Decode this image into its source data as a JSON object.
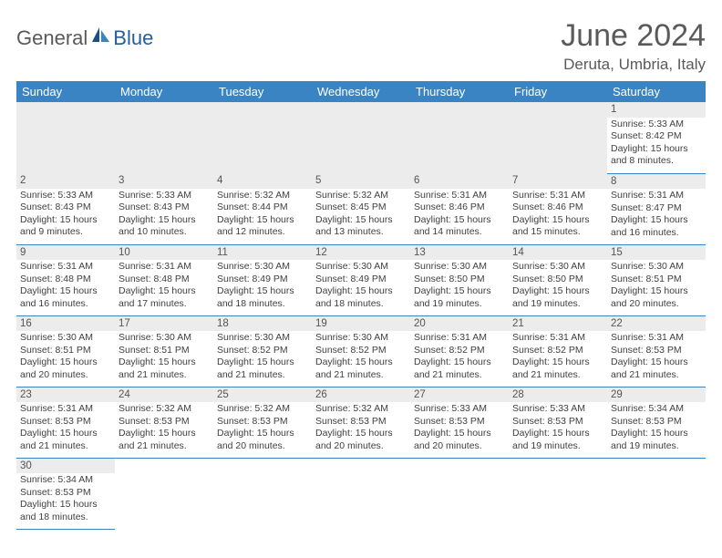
{
  "brand": {
    "part1": "General",
    "part2": "Blue"
  },
  "title": "June 2024",
  "location": "Deruta, Umbria, Italy",
  "colors": {
    "header_bg": "#3b84c4",
    "header_text": "#ffffff",
    "daynum_bg": "#ececec",
    "row_border": "#3b84c4",
    "title_color": "#5a5a5a",
    "brand_blue": "#235f9c"
  },
  "type": "table",
  "columns": [
    "Sunday",
    "Monday",
    "Tuesday",
    "Wednesday",
    "Thursday",
    "Friday",
    "Saturday"
  ],
  "weeks": [
    [
      null,
      null,
      null,
      null,
      null,
      null,
      {
        "n": "1",
        "sr": "5:33 AM",
        "ss": "8:42 PM",
        "dl": "15 hours and 8 minutes."
      }
    ],
    [
      {
        "n": "2",
        "sr": "5:33 AM",
        "ss": "8:43 PM",
        "dl": "15 hours and 9 minutes."
      },
      {
        "n": "3",
        "sr": "5:33 AM",
        "ss": "8:43 PM",
        "dl": "15 hours and 10 minutes."
      },
      {
        "n": "4",
        "sr": "5:32 AM",
        "ss": "8:44 PM",
        "dl": "15 hours and 12 minutes."
      },
      {
        "n": "5",
        "sr": "5:32 AM",
        "ss": "8:45 PM",
        "dl": "15 hours and 13 minutes."
      },
      {
        "n": "6",
        "sr": "5:31 AM",
        "ss": "8:46 PM",
        "dl": "15 hours and 14 minutes."
      },
      {
        "n": "7",
        "sr": "5:31 AM",
        "ss": "8:46 PM",
        "dl": "15 hours and 15 minutes."
      },
      {
        "n": "8",
        "sr": "5:31 AM",
        "ss": "8:47 PM",
        "dl": "15 hours and 16 minutes."
      }
    ],
    [
      {
        "n": "9",
        "sr": "5:31 AM",
        "ss": "8:48 PM",
        "dl": "15 hours and 16 minutes."
      },
      {
        "n": "10",
        "sr": "5:31 AM",
        "ss": "8:48 PM",
        "dl": "15 hours and 17 minutes."
      },
      {
        "n": "11",
        "sr": "5:30 AM",
        "ss": "8:49 PM",
        "dl": "15 hours and 18 minutes."
      },
      {
        "n": "12",
        "sr": "5:30 AM",
        "ss": "8:49 PM",
        "dl": "15 hours and 18 minutes."
      },
      {
        "n": "13",
        "sr": "5:30 AM",
        "ss": "8:50 PM",
        "dl": "15 hours and 19 minutes."
      },
      {
        "n": "14",
        "sr": "5:30 AM",
        "ss": "8:50 PM",
        "dl": "15 hours and 19 minutes."
      },
      {
        "n": "15",
        "sr": "5:30 AM",
        "ss": "8:51 PM",
        "dl": "15 hours and 20 minutes."
      }
    ],
    [
      {
        "n": "16",
        "sr": "5:30 AM",
        "ss": "8:51 PM",
        "dl": "15 hours and 20 minutes."
      },
      {
        "n": "17",
        "sr": "5:30 AM",
        "ss": "8:51 PM",
        "dl": "15 hours and 21 minutes."
      },
      {
        "n": "18",
        "sr": "5:30 AM",
        "ss": "8:52 PM",
        "dl": "15 hours and 21 minutes."
      },
      {
        "n": "19",
        "sr": "5:30 AM",
        "ss": "8:52 PM",
        "dl": "15 hours and 21 minutes."
      },
      {
        "n": "20",
        "sr": "5:31 AM",
        "ss": "8:52 PM",
        "dl": "15 hours and 21 minutes."
      },
      {
        "n": "21",
        "sr": "5:31 AM",
        "ss": "8:52 PM",
        "dl": "15 hours and 21 minutes."
      },
      {
        "n": "22",
        "sr": "5:31 AM",
        "ss": "8:53 PM",
        "dl": "15 hours and 21 minutes."
      }
    ],
    [
      {
        "n": "23",
        "sr": "5:31 AM",
        "ss": "8:53 PM",
        "dl": "15 hours and 21 minutes."
      },
      {
        "n": "24",
        "sr": "5:32 AM",
        "ss": "8:53 PM",
        "dl": "15 hours and 21 minutes."
      },
      {
        "n": "25",
        "sr": "5:32 AM",
        "ss": "8:53 PM",
        "dl": "15 hours and 20 minutes."
      },
      {
        "n": "26",
        "sr": "5:32 AM",
        "ss": "8:53 PM",
        "dl": "15 hours and 20 minutes."
      },
      {
        "n": "27",
        "sr": "5:33 AM",
        "ss": "8:53 PM",
        "dl": "15 hours and 20 minutes."
      },
      {
        "n": "28",
        "sr": "5:33 AM",
        "ss": "8:53 PM",
        "dl": "15 hours and 19 minutes."
      },
      {
        "n": "29",
        "sr": "5:34 AM",
        "ss": "8:53 PM",
        "dl": "15 hours and 19 minutes."
      }
    ],
    [
      {
        "n": "30",
        "sr": "5:34 AM",
        "ss": "8:53 PM",
        "dl": "15 hours and 18 minutes."
      },
      null,
      null,
      null,
      null,
      null,
      null
    ]
  ],
  "labels": {
    "sunrise": "Sunrise:",
    "sunset": "Sunset:",
    "daylight": "Daylight:"
  }
}
